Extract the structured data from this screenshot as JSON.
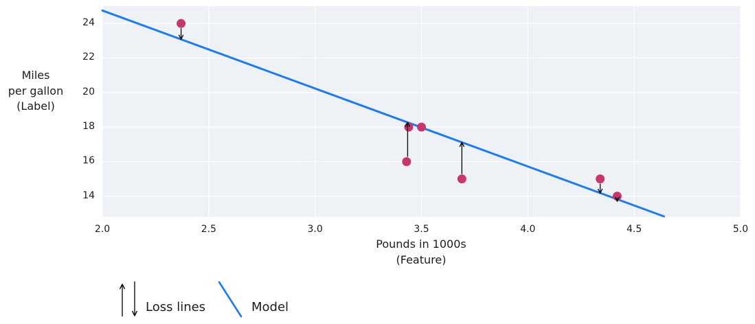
{
  "figure": {
    "background": "#ffffff",
    "plot_background": "#eef1f6",
    "grid_color": "#ffffff",
    "text_color": "#1c1c1c"
  },
  "chart_data": {
    "type": "scatter",
    "xlabel": "Pounds in 1000s\n(Feature)",
    "ylabel": "Miles\nper gallon\n(Label)",
    "xlim": [
      2.0,
      5.0
    ],
    "ylim": [
      12.8,
      25.0
    ],
    "grid": true,
    "xticks": {
      "values": [
        2.0,
        2.5,
        3.0,
        3.5,
        4.0,
        4.5,
        5.0
      ],
      "labels": [
        "2.0",
        "2.5",
        "3.0",
        "3.5",
        "4.0",
        "4.5",
        "5.0"
      ]
    },
    "yticks": {
      "values": [
        14,
        16,
        18,
        20,
        22,
        24
      ],
      "labels": [
        "14",
        "16",
        "18",
        "20",
        "22",
        "24"
      ]
    },
    "points": {
      "color": "#c8366b",
      "radius": 6.5,
      "xy": [
        [
          2.37,
          24
        ],
        [
          3.44,
          18
        ],
        [
          3.5,
          18
        ],
        [
          3.43,
          16
        ],
        [
          3.69,
          15
        ],
        [
          4.34,
          15
        ],
        [
          4.42,
          14
        ]
      ]
    },
    "model_line": {
      "name": "Model",
      "color": "#1e7af0",
      "width": 3,
      "points": [
        [
          2.0,
          24.75
        ],
        [
          4.64,
          12.83
        ]
      ]
    },
    "loss_lines": {
      "name": "Loss lines",
      "color": "#111111",
      "segments": [
        {
          "x": 2.37,
          "from": 24,
          "to": 23.08,
          "direction": "down"
        },
        {
          "x": 3.435,
          "from": 16,
          "to": 18.27,
          "direction": "up"
        },
        {
          "x": 3.69,
          "from": 15,
          "to": 17.12,
          "direction": "up"
        },
        {
          "x": 4.34,
          "from": 15,
          "to": 14.17,
          "direction": "down"
        },
        {
          "x": 4.42,
          "from": 14,
          "to": 13.7,
          "direction": "down"
        }
      ]
    }
  },
  "legend": {
    "loss_label": "Loss lines",
    "model_label": "Model"
  }
}
